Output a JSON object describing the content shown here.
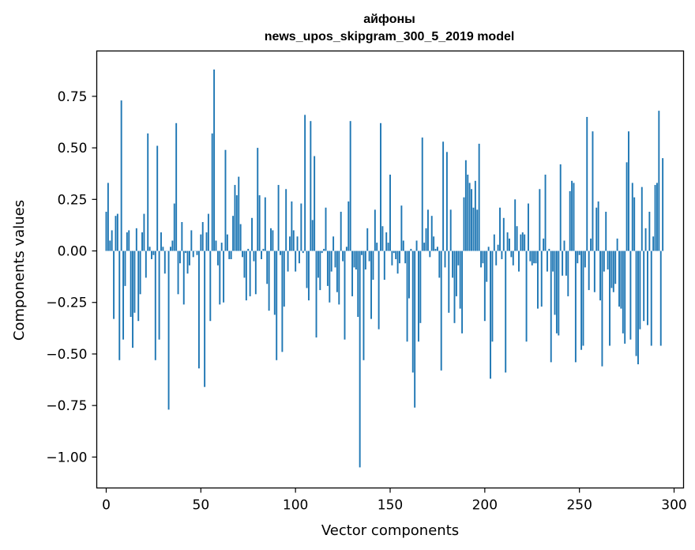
{
  "chart_data": {
    "type": "bar",
    "title": "айфоны",
    "subtitle": "news_upos_skipgram_300_5_2019 model",
    "xlabel": "Vector components",
    "ylabel": "Components values",
    "xlim": [
      -5,
      305
    ],
    "ylim": [
      -1.15,
      0.97
    ],
    "xticks": [
      0,
      50,
      100,
      150,
      200,
      250,
      300
    ],
    "xtick_labels": [
      "0",
      "50",
      "100",
      "150",
      "200",
      "250",
      "300"
    ],
    "yticks": [
      -1.0,
      -0.75,
      -0.5,
      -0.25,
      0.0,
      0.25,
      0.5,
      0.75
    ],
    "ytick_labels": [
      "−1.00",
      "−0.75",
      "−0.50",
      "−0.25",
      "0.00",
      "0.25",
      "0.50",
      "0.75"
    ],
    "bar_color": "#1f77b4",
    "values": [
      0.19,
      0.33,
      0.05,
      0.1,
      -0.33,
      0.17,
      0.18,
      -0.53,
      0.73,
      -0.43,
      -0.17,
      0.09,
      0.1,
      -0.32,
      -0.47,
      -0.3,
      0.11,
      -0.34,
      -0.21,
      0.09,
      0.18,
      -0.13,
      0.57,
      0.02,
      -0.04,
      -0.02,
      -0.53,
      0.51,
      -0.43,
      0.09,
      0.02,
      -0.11,
      0.0,
      -0.77,
      0.02,
      0.05,
      0.23,
      0.62,
      -0.21,
      -0.06,
      0.14,
      -0.26,
      -0.01,
      -0.11,
      -0.07,
      0.1,
      -0.03,
      0.0,
      -0.02,
      -0.57,
      0.08,
      0.14,
      -0.66,
      0.09,
      0.18,
      -0.34,
      0.57,
      0.88,
      0.05,
      -0.07,
      -0.26,
      0.04,
      -0.25,
      0.49,
      0.08,
      -0.04,
      -0.04,
      0.17,
      0.32,
      0.27,
      0.36,
      0.13,
      -0.03,
      -0.13,
      -0.24,
      0.01,
      -0.22,
      0.16,
      -0.05,
      -0.21,
      0.5,
      0.27,
      -0.04,
      0.01,
      0.26,
      -0.16,
      -0.29,
      0.11,
      0.1,
      -0.31,
      -0.53,
      0.32,
      -0.02,
      -0.49,
      -0.27,
      0.3,
      -0.1,
      0.07,
      0.24,
      0.1,
      -0.1,
      0.07,
      -0.06,
      0.23,
      -0.01,
      0.66,
      -0.18,
      -0.24,
      0.63,
      0.15,
      0.46,
      -0.42,
      -0.13,
      -0.19,
      -0.01,
      0.01,
      0.21,
      -0.17,
      -0.25,
      -0.1,
      0.07,
      -0.08,
      -0.2,
      -0.26,
      0.19,
      -0.05,
      -0.43,
      0.02,
      0.24,
      0.63,
      -0.22,
      -0.08,
      -0.09,
      -0.32,
      -1.05,
      -0.02,
      -0.53,
      -0.09,
      0.11,
      -0.05,
      -0.33,
      -0.14,
      0.2,
      0.04,
      -0.38,
      0.62,
      0.12,
      -0.14,
      0.09,
      0.04,
      0.37,
      -0.07,
      -0.01,
      -0.04,
      -0.11,
      -0.06,
      0.22,
      0.05,
      -0.06,
      -0.44,
      -0.23,
      0.01,
      -0.59,
      -0.76,
      0.05,
      -0.44,
      -0.35,
      0.55,
      0.04,
      0.11,
      0.2,
      -0.03,
      0.17,
      0.07,
      0.01,
      0.02,
      -0.13,
      -0.58,
      0.53,
      -0.08,
      0.48,
      -0.3,
      0.2,
      -0.13,
      -0.35,
      -0.22,
      -0.07,
      -0.28,
      -0.4,
      0.26,
      0.44,
      0.37,
      0.33,
      0.3,
      0.21,
      0.34,
      0.2,
      0.52,
      -0.08,
      -0.06,
      -0.34,
      -0.15,
      0.02,
      -0.62,
      -0.44,
      0.08,
      -0.07,
      0.03,
      0.21,
      -0.04,
      0.16,
      -0.59,
      0.09,
      0.06,
      -0.03,
      -0.07,
      0.25,
      0.12,
      -0.1,
      0.08,
      0.09,
      0.08,
      -0.44,
      0.23,
      -0.05,
      -0.07,
      -0.06,
      -0.06,
      -0.28,
      0.3,
      -0.27,
      0.06,
      0.37,
      -0.1,
      0.01,
      -0.54,
      -0.1,
      -0.31,
      -0.4,
      -0.41,
      0.42,
      -0.12,
      0.05,
      -0.12,
      -0.22,
      0.29,
      0.34,
      0.33,
      -0.54,
      -0.06,
      -0.02,
      -0.48,
      -0.46,
      -0.08,
      0.65,
      -0.19,
      0.06,
      0.58,
      -0.2,
      0.21,
      0.24,
      -0.24,
      -0.56,
      -0.1,
      0.19,
      -0.09,
      -0.46,
      -0.18,
      -0.2,
      -0.16,
      0.06,
      -0.27,
      -0.28,
      -0.4,
      -0.45,
      0.43,
      0.58,
      -0.43,
      0.33,
      0.26,
      -0.51,
      -0.55,
      -0.38,
      0.31,
      -0.34,
      0.11,
      -0.36,
      0.19,
      -0.46,
      0.07,
      0.32,
      0.33,
      0.68,
      -0.46,
      0.45
    ]
  }
}
